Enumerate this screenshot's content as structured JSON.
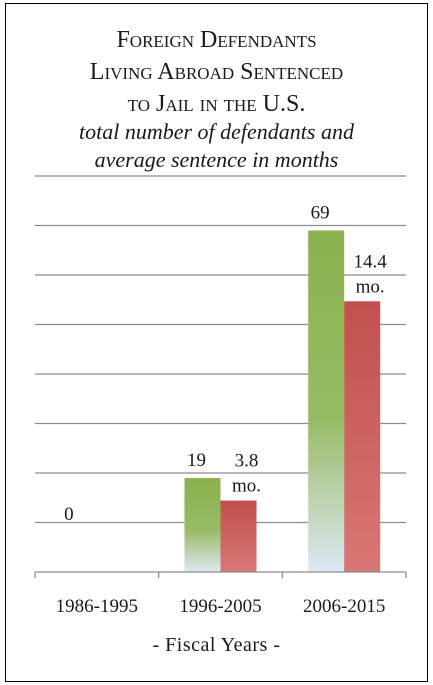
{
  "chart_data": {
    "type": "bar",
    "title": [
      "Foreign Defendants",
      "Living Abroad Sentenced",
      "to Jail in the U.S."
    ],
    "subtitle": [
      "total number of defendants and",
      "average sentence in months"
    ],
    "xlabel": "-  Fiscal Years  -",
    "ylabel": "",
    "categories": [
      "1986-1995",
      "1996-2005",
      "2006-2015"
    ],
    "series": [
      {
        "name": "",
        "values": [
          0,
          19,
          69
        ],
        "labels": [
          "0",
          "19",
          "69"
        ],
        "color": "#8bb14f"
      },
      {
        "name": "",
        "values": [
          null,
          3.8,
          14.4
        ],
        "labels": [
          "",
          "3.8 mo.",
          "14.4 mo."
        ],
        "color": "#c0504d"
      }
    ],
    "ylim": [
      0,
      80
    ],
    "grid": true,
    "legend": "none"
  }
}
